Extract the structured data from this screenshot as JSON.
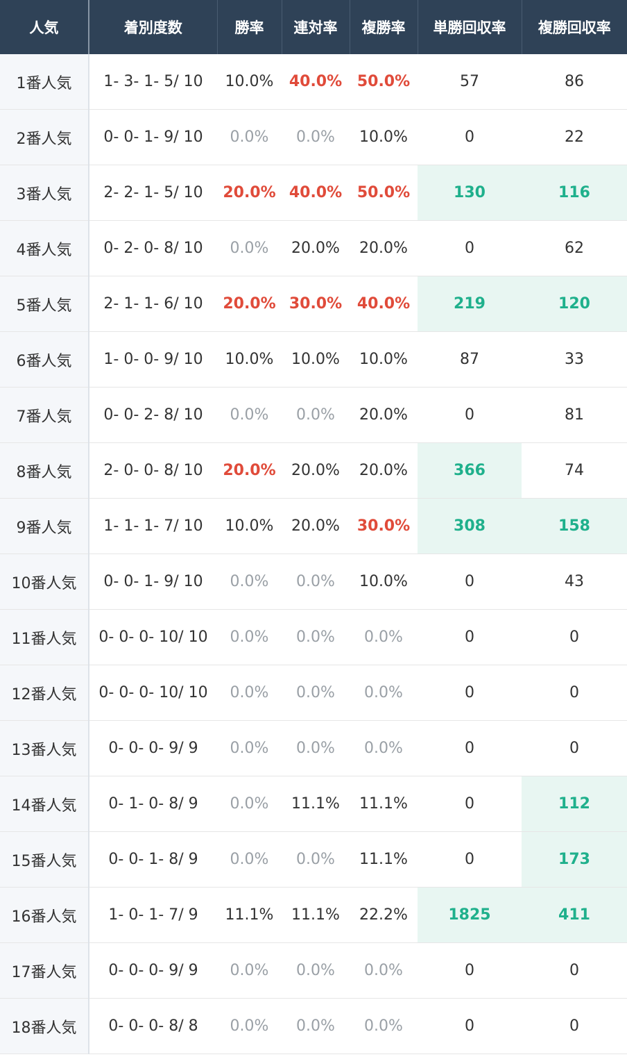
{
  "table": {
    "header": [
      "人気",
      "着別度数",
      "勝率",
      "連対率",
      "複勝率",
      "単勝回収率",
      "複勝回収率"
    ],
    "tone_colors": {
      "normal": "#333333",
      "muted": "#9aa0a6",
      "red": "#e04b3a",
      "green": "#1fb08c"
    },
    "highlight_background": "#e8f6f2",
    "rows": [
      {
        "cells": [
          "1番人気",
          "1- 3- 1- 5/ 10",
          "10.0%",
          "40.0%",
          "50.0%",
          "57",
          "86"
        ],
        "tones": [
          "normal",
          "red",
          "red",
          "normal",
          "normal"
        ]
      },
      {
        "cells": [
          "2番人気",
          "0- 0- 1- 9/ 10",
          "0.0%",
          "0.0%",
          "10.0%",
          "0",
          "22"
        ],
        "tones": [
          "muted",
          "muted",
          "normal",
          "normal",
          "normal"
        ]
      },
      {
        "cells": [
          "3番人気",
          "2- 2- 1- 5/ 10",
          "20.0%",
          "40.0%",
          "50.0%",
          "130",
          "116"
        ],
        "tones": [
          "red",
          "red",
          "red",
          "green",
          "green"
        ]
      },
      {
        "cells": [
          "4番人気",
          "0- 2- 0- 8/ 10",
          "0.0%",
          "20.0%",
          "20.0%",
          "0",
          "62"
        ],
        "tones": [
          "muted",
          "normal",
          "normal",
          "normal",
          "normal"
        ]
      },
      {
        "cells": [
          "5番人気",
          "2- 1- 1- 6/ 10",
          "20.0%",
          "30.0%",
          "40.0%",
          "219",
          "120"
        ],
        "tones": [
          "red",
          "red",
          "red",
          "green",
          "green"
        ]
      },
      {
        "cells": [
          "6番人気",
          "1- 0- 0- 9/ 10",
          "10.0%",
          "10.0%",
          "10.0%",
          "87",
          "33"
        ],
        "tones": [
          "normal",
          "normal",
          "normal",
          "normal",
          "normal"
        ]
      },
      {
        "cells": [
          "7番人気",
          "0- 0- 2- 8/ 10",
          "0.0%",
          "0.0%",
          "20.0%",
          "0",
          "81"
        ],
        "tones": [
          "muted",
          "muted",
          "normal",
          "normal",
          "normal"
        ]
      },
      {
        "cells": [
          "8番人気",
          "2- 0- 0- 8/ 10",
          "20.0%",
          "20.0%",
          "20.0%",
          "366",
          "74"
        ],
        "tones": [
          "red",
          "normal",
          "normal",
          "green",
          "normal"
        ]
      },
      {
        "cells": [
          "9番人気",
          "1- 1- 1- 7/ 10",
          "10.0%",
          "20.0%",
          "30.0%",
          "308",
          "158"
        ],
        "tones": [
          "normal",
          "normal",
          "red",
          "green",
          "green"
        ]
      },
      {
        "cells": [
          "10番人気",
          "0- 0- 1- 9/ 10",
          "0.0%",
          "0.0%",
          "10.0%",
          "0",
          "43"
        ],
        "tones": [
          "muted",
          "muted",
          "normal",
          "normal",
          "normal"
        ]
      },
      {
        "cells": [
          "11番人気",
          "0- 0- 0- 10/ 10",
          "0.0%",
          "0.0%",
          "0.0%",
          "0",
          "0"
        ],
        "tones": [
          "muted",
          "muted",
          "muted",
          "normal",
          "normal"
        ]
      },
      {
        "cells": [
          "12番人気",
          "0- 0- 0- 10/ 10",
          "0.0%",
          "0.0%",
          "0.0%",
          "0",
          "0"
        ],
        "tones": [
          "muted",
          "muted",
          "muted",
          "normal",
          "normal"
        ]
      },
      {
        "cells": [
          "13番人気",
          "0- 0- 0- 9/ 9",
          "0.0%",
          "0.0%",
          "0.0%",
          "0",
          "0"
        ],
        "tones": [
          "muted",
          "muted",
          "muted",
          "normal",
          "normal"
        ]
      },
      {
        "cells": [
          "14番人気",
          "0- 1- 0- 8/ 9",
          "0.0%",
          "11.1%",
          "11.1%",
          "0",
          "112"
        ],
        "tones": [
          "muted",
          "normal",
          "normal",
          "normal",
          "green"
        ]
      },
      {
        "cells": [
          "15番人気",
          "0- 0- 1- 8/ 9",
          "0.0%",
          "0.0%",
          "11.1%",
          "0",
          "173"
        ],
        "tones": [
          "muted",
          "muted",
          "normal",
          "normal",
          "green"
        ]
      },
      {
        "cells": [
          "16番人気",
          "1- 0- 1- 7/ 9",
          "11.1%",
          "11.1%",
          "22.2%",
          "1825",
          "411"
        ],
        "tones": [
          "normal",
          "normal",
          "normal",
          "green",
          "green"
        ]
      },
      {
        "cells": [
          "17番人気",
          "0- 0- 0- 9/ 9",
          "0.0%",
          "0.0%",
          "0.0%",
          "0",
          "0"
        ],
        "tones": [
          "muted",
          "muted",
          "muted",
          "normal",
          "normal"
        ]
      },
      {
        "cells": [
          "18番人気",
          "0- 0- 0- 8/ 8",
          "0.0%",
          "0.0%",
          "0.0%",
          "0",
          "0"
        ],
        "tones": [
          "muted",
          "muted",
          "muted",
          "normal",
          "normal"
        ]
      }
    ]
  }
}
